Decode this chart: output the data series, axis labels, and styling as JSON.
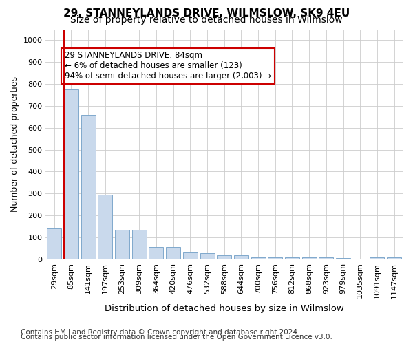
{
  "title": "29, STANNEYLANDS DRIVE, WILMSLOW, SK9 4EU",
  "subtitle": "Size of property relative to detached houses in Wilmslow",
  "xlabel": "Distribution of detached houses by size in Wilmslow",
  "ylabel": "Number of detached properties",
  "footnote1": "Contains HM Land Registry data © Crown copyright and database right 2024.",
  "footnote2": "Contains public sector information licensed under the Open Government Licence v3.0.",
  "annotation_line1": "29 STANNEYLANDS DRIVE: 84sqm",
  "annotation_line2": "← 6% of detached houses are smaller (123)",
  "annotation_line3": "94% of semi-detached houses are larger (2,003) →",
  "bar_labels": [
    "29sqm",
    "85sqm",
    "141sqm",
    "197sqm",
    "253sqm",
    "309sqm",
    "364sqm",
    "420sqm",
    "476sqm",
    "532sqm",
    "588sqm",
    "644sqm",
    "700sqm",
    "756sqm",
    "812sqm",
    "868sqm",
    "923sqm",
    "979sqm",
    "1035sqm",
    "1091sqm",
    "1147sqm"
  ],
  "bar_values": [
    140,
    775,
    660,
    295,
    135,
    135,
    55,
    55,
    30,
    28,
    18,
    18,
    10,
    8,
    8,
    8,
    8,
    5,
    2,
    10,
    10
  ],
  "bar_color": "#c9d9ec",
  "bar_edge_color": "#7fa8cc",
  "red_line_x": 0,
  "ylim": [
    0,
    1050
  ],
  "yticks": [
    0,
    100,
    200,
    300,
    400,
    500,
    600,
    700,
    800,
    900,
    1000
  ],
  "annotation_box_color": "#ffffff",
  "annotation_box_edge": "#cc0000",
  "red_line_color": "#cc0000",
  "title_fontsize": 11,
  "subtitle_fontsize": 10,
  "axis_label_fontsize": 9,
  "tick_fontsize": 8,
  "annotation_fontsize": 8.5,
  "footnote_fontsize": 7.5
}
